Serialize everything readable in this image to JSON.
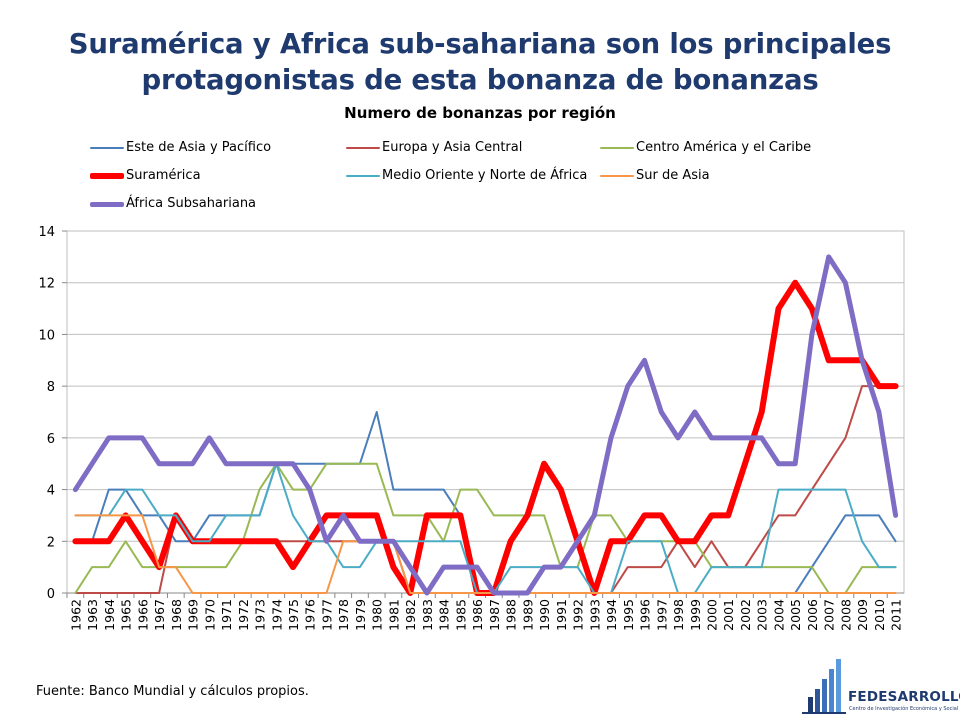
{
  "title": {
    "line1": "Suramérica y Africa sub-sahariana son los principales",
    "line2": "protagonistas de esta bonanza de bonanzas"
  },
  "source": "Fuente: Banco Mundial y cálculos propios.",
  "logo": {
    "name": "FEDESARROLLO",
    "subtitle": "Centro de Investigación Económica y Social"
  },
  "chart_data": {
    "type": "line",
    "title": "Numero de bonanzas por región",
    "xlabel": "",
    "ylabel": "",
    "ylim": [
      0,
      14
    ],
    "yticks": [
      0,
      2,
      4,
      6,
      8,
      10,
      12,
      14
    ],
    "grid": "horizontal",
    "legend_position": "top",
    "x": [
      "1962",
      "1963",
      "1964",
      "1965",
      "1966",
      "1967",
      "1968",
      "1969",
      "1970",
      "1971",
      "1972",
      "1973",
      "1974",
      "1975",
      "1976",
      "1977",
      "1978",
      "1979",
      "1980",
      "1981",
      "1982",
      "1983",
      "1984",
      "1985",
      "1986",
      "1987",
      "1988",
      "1989",
      "1990",
      "1991",
      "1992",
      "1993",
      "1994",
      "1995",
      "1996",
      "1997",
      "1998",
      "1999",
      "2000",
      "2001",
      "2002",
      "2003",
      "2004",
      "2005",
      "2006",
      "2007",
      "2008",
      "2009",
      "2010",
      "2011"
    ],
    "series": [
      {
        "name": "Este de Asia y Pacífico",
        "color": "#4A7EBB",
        "width": 2,
        "values": [
          2,
          2,
          4,
          4,
          3,
          3,
          2,
          2,
          3,
          3,
          3,
          3,
          5,
          5,
          5,
          5,
          5,
          5,
          7,
          4,
          4,
          4,
          4,
          3,
          0,
          0,
          0,
          0,
          0,
          0,
          0,
          0,
          0,
          0,
          0,
          0,
          0,
          0,
          0,
          0,
          0,
          0,
          0,
          0,
          1,
          2,
          3,
          3,
          3,
          2
        ]
      },
      {
        "name": "Europa y Asia Central",
        "color": "#BE4B48",
        "width": 2,
        "values": [
          0,
          0,
          0,
          0,
          0,
          0,
          3,
          2,
          2,
          2,
          2,
          2,
          2,
          2,
          2,
          2,
          2,
          2,
          2,
          2,
          0,
          0,
          0,
          0,
          0,
          0,
          0,
          0,
          0,
          0,
          0,
          0,
          0,
          1,
          1,
          1,
          2,
          1,
          2,
          1,
          1,
          2,
          3,
          3,
          4,
          5,
          6,
          8,
          8,
          8
        ]
      },
      {
        "name": "Centro América y el Caribe",
        "color": "#98B954",
        "width": 2,
        "values": [
          0,
          1,
          1,
          2,
          1,
          1,
          1,
          1,
          1,
          1,
          2,
          4,
          5,
          4,
          4,
          5,
          5,
          5,
          5,
          3,
          3,
          3,
          2,
          4,
          4,
          3,
          3,
          3,
          3,
          1,
          1,
          3,
          3,
          2,
          2,
          2,
          2,
          2,
          1,
          1,
          1,
          1,
          1,
          1,
          1,
          0,
          0,
          1,
          1,
          1
        ]
      },
      {
        "name": "Suramérica",
        "color": "#FF0000",
        "width": 6,
        "values": [
          2,
          2,
          2,
          3,
          2,
          1,
          3,
          2,
          2,
          2,
          2,
          2,
          2,
          1,
          2,
          3,
          3,
          3,
          3,
          1,
          0,
          3,
          3,
          3,
          0,
          0,
          2,
          3,
          5,
          4,
          2,
          0,
          2,
          2,
          3,
          3,
          2,
          2,
          3,
          3,
          5,
          7,
          11,
          12,
          11,
          9,
          9,
          9,
          8,
          8
        ]
      },
      {
        "name": "Medio Oriente y Norte de África",
        "color": "#4BACC6",
        "width": 2,
        "values": [
          3,
          3,
          3,
          4,
          4,
          3,
          3,
          2,
          2,
          3,
          3,
          3,
          5,
          3,
          2,
          2,
          1,
          1,
          2,
          2,
          2,
          2,
          2,
          2,
          0,
          0,
          1,
          1,
          1,
          1,
          1,
          0,
          0,
          2,
          2,
          2,
          0,
          0,
          1,
          1,
          1,
          1,
          4,
          4,
          4,
          4,
          4,
          2,
          1,
          1
        ]
      },
      {
        "name": "Sur de Asia",
        "color": "#F79646",
        "width": 2,
        "values": [
          3,
          3,
          3,
          3,
          3,
          1,
          1,
          0,
          0,
          0,
          0,
          0,
          0,
          0,
          0,
          0,
          2,
          2,
          2,
          2,
          0,
          0,
          0,
          0,
          0,
          0,
          0,
          0,
          0,
          0,
          0,
          0,
          0,
          0,
          0,
          0,
          0,
          0,
          0,
          0,
          0,
          0,
          0,
          0,
          0,
          0,
          0,
          0,
          0,
          0
        ]
      },
      {
        "name": "África Subsahariana",
        "color": "#7F6CC4",
        "width": 5,
        "values": [
          4,
          5,
          6,
          6,
          6,
          5,
          5,
          5,
          6,
          5,
          5,
          5,
          5,
          5,
          4,
          2,
          3,
          2,
          2,
          2,
          1,
          0,
          1,
          1,
          1,
          0,
          0,
          0,
          1,
          1,
          2,
          3,
          6,
          8,
          9,
          7,
          6,
          7,
          6,
          6,
          6,
          6,
          5,
          5,
          10,
          13,
          12,
          9,
          7,
          3
        ]
      }
    ]
  }
}
